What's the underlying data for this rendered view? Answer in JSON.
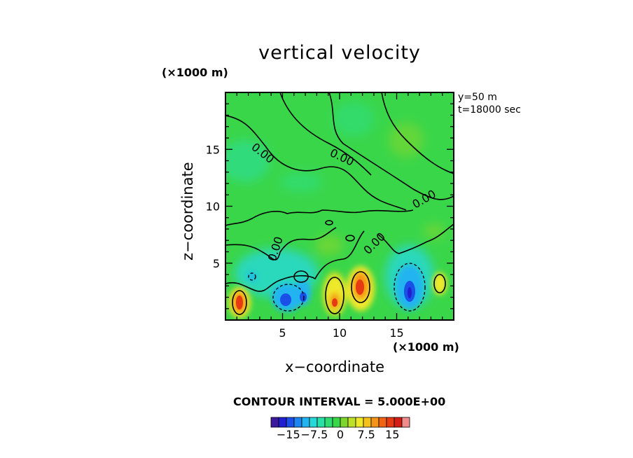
{
  "figure": {
    "title": "vertical velocity",
    "x_unit": "(×1000 m)",
    "y_unit": "(×1000 m)",
    "info_line1": "y=50 m",
    "info_line2": "t=18000 sec",
    "contour_interval_text": "CONTOUR INTERVAL = 5.000E+00"
  },
  "chart_data": {
    "type": "heatmap",
    "title": "vertical velocity",
    "xlabel": "x−coordinate",
    "ylabel": "z−coordinate",
    "xlim": [
      0,
      20
    ],
    "ylim": [
      0,
      20
    ],
    "xticks": [
      5,
      10,
      15
    ],
    "yticks": [
      5,
      10,
      15
    ],
    "contour_interval": 5.0,
    "contour_labels": [
      "0.00",
      "0.00",
      "0.00",
      "0.00",
      "0.00"
    ],
    "colorbar": {
      "ticks": [
        "−15",
        "−7.5",
        "0",
        "7.5",
        "15"
      ],
      "range": [
        -20,
        20
      ],
      "colors": [
        "#3c1a9e",
        "#2020d0",
        "#1a50e8",
        "#1f86f0",
        "#21b4f0",
        "#28d8d8",
        "#29e0a6",
        "#2edc72",
        "#3ad64a",
        "#7ed62c",
        "#bfe02a",
        "#f0e82a",
        "#f5c21c",
        "#f59418",
        "#f06414",
        "#e63a12",
        "#d21e14",
        "#f08c8c"
      ]
    },
    "features": [
      {
        "kind": "updraft",
        "x": 1.2,
        "z": 1.6,
        "peak": 15
      },
      {
        "kind": "downdraft",
        "x": 5.0,
        "z": 2.0,
        "peak": -15
      },
      {
        "kind": "downdraft",
        "x": 6.5,
        "z": 1.8,
        "peak": -10
      },
      {
        "kind": "updraft",
        "x": 9.6,
        "z": 1.8,
        "peak": 12
      },
      {
        "kind": "updraft",
        "x": 11.8,
        "z": 3.0,
        "peak": 15
      },
      {
        "kind": "downdraft",
        "x": 16.0,
        "z": 2.5,
        "peak": -15
      },
      {
        "kind": "updraft",
        "x": 19.0,
        "z": 3.0,
        "peak": 7
      }
    ]
  }
}
